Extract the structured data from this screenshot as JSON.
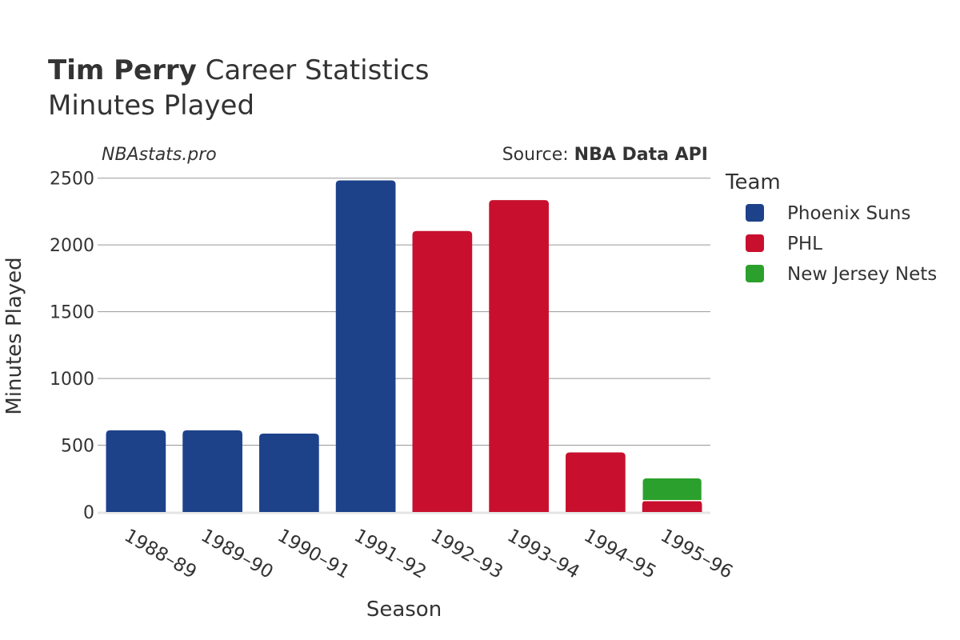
{
  "header": {
    "player_name": "Tim Perry",
    "title_rest": "Career Statistics",
    "subtitle": "Minutes Played"
  },
  "annotations": {
    "site": "NBAstats.pro",
    "source_prefix": "Source: ",
    "source_name": "NBA Data API"
  },
  "legend": {
    "title": "Team"
  },
  "colors": {
    "Phoenix Suns": "#1d428a",
    "PHL": "#c8102e",
    "New Jersey Nets": "#2ca02c",
    "grid": "#999999",
    "axis": "#e5e5e5"
  },
  "chart_data": {
    "type": "bar",
    "stacked": true,
    "title": "Tim Perry Career Statistics",
    "subtitle": "Minutes Played",
    "xlabel": "Season",
    "ylabel": "Minutes Played",
    "ylim": [
      0,
      2600
    ],
    "yticks": [
      0,
      500,
      1000,
      1500,
      2000,
      2500
    ],
    "categories": [
      "1988–89",
      "1989–90",
      "1990–91",
      "1991–92",
      "1992–93",
      "1993–94",
      "1994–95",
      "1995–96"
    ],
    "series": [
      {
        "name": "Phoenix Suns",
        "values": [
          612,
          612,
          587,
          2483,
          0,
          0,
          0,
          0
        ]
      },
      {
        "name": "PHL",
        "values": [
          0,
          0,
          0,
          0,
          2104,
          2336,
          446,
          85
        ]
      },
      {
        "name": "New Jersey Nets",
        "values": [
          0,
          0,
          0,
          0,
          0,
          0,
          0,
          171
        ]
      }
    ],
    "legend_position": "right"
  }
}
